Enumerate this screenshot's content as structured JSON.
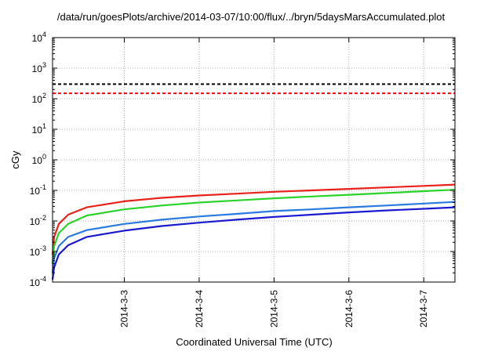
{
  "chart_data": {
    "type": "line",
    "title": "/data/run/goesPlots/archive/2014-03-07/10:00/flux/../bryn/5daysMarsAccumulated.plot",
    "xlabel": "Coordinated Universal Time (UTC)",
    "ylabel": "cGy",
    "y_scale": "log",
    "ylim": [
      0.0001,
      10000
    ],
    "xlim": [
      "2014-03-02 01:00",
      "2014-03-07 10:00"
    ],
    "grid": true,
    "legend": "none",
    "x_ticks": [
      "2014-3-3",
      "2014-3-4",
      "2014-3-5",
      "2014-3-6",
      "2014-3-7"
    ],
    "y_ticks": [
      {
        "base": "10",
        "exp": "-4"
      },
      {
        "base": "10",
        "exp": "-3"
      },
      {
        "base": "10",
        "exp": "-2"
      },
      {
        "base": "10",
        "exp": "-1"
      },
      {
        "base": "10",
        "exp": "0"
      },
      {
        "base": "10",
        "exp": "1"
      },
      {
        "base": "10",
        "exp": "2"
      },
      {
        "base": "10",
        "exp": "3"
      },
      {
        "base": "10",
        "exp": "4"
      }
    ],
    "hlines": [
      {
        "value": 300,
        "color": "#000000",
        "style": "dashed"
      },
      {
        "value": 150,
        "color": "#ff0000",
        "style": "dashed"
      }
    ],
    "series": [
      {
        "color": "#e8211a",
        "points": [
          [
            "2014-03-02 01:00",
            0.0008
          ],
          [
            "2014-03-02 01:30",
            0.003
          ],
          [
            "2014-03-02 03:00",
            0.008
          ],
          [
            "2014-03-02 06:00",
            0.016
          ],
          [
            "2014-03-02 12:00",
            0.028
          ],
          [
            "2014-03-03 00:00",
            0.044
          ],
          [
            "2014-03-03 12:00",
            0.057
          ],
          [
            "2014-03-04 00:00",
            0.068
          ],
          [
            "2014-03-04 12:00",
            0.078
          ],
          [
            "2014-03-05 00:00",
            0.09
          ],
          [
            "2014-03-05 12:00",
            0.1
          ],
          [
            "2014-03-06 00:00",
            0.112
          ],
          [
            "2014-03-06 12:00",
            0.125
          ],
          [
            "2014-03-07 00:00",
            0.14
          ],
          [
            "2014-03-07 10:00",
            0.155
          ]
        ]
      },
      {
        "color": "#2ad32a",
        "points": [
          [
            "2014-03-02 01:00",
            0.0004
          ],
          [
            "2014-03-02 01:30",
            0.0015
          ],
          [
            "2014-03-02 03:00",
            0.004
          ],
          [
            "2014-03-02 06:00",
            0.008
          ],
          [
            "2014-03-02 12:00",
            0.015
          ],
          [
            "2014-03-03 00:00",
            0.024
          ],
          [
            "2014-03-03 12:00",
            0.032
          ],
          [
            "2014-03-04 00:00",
            0.04
          ],
          [
            "2014-03-04 12:00",
            0.047
          ],
          [
            "2014-03-05 00:00",
            0.055
          ],
          [
            "2014-03-05 12:00",
            0.063
          ],
          [
            "2014-03-06 00:00",
            0.072
          ],
          [
            "2014-03-06 12:00",
            0.082
          ],
          [
            "2014-03-07 00:00",
            0.094
          ],
          [
            "2014-03-07 10:00",
            0.105
          ]
        ]
      },
      {
        "color": "#2a7ae0",
        "points": [
          [
            "2014-03-02 01:00",
            0.0002
          ],
          [
            "2014-03-02 01:30",
            0.0006
          ],
          [
            "2014-03-02 03:00",
            0.0015
          ],
          [
            "2014-03-02 06:00",
            0.003
          ],
          [
            "2014-03-02 12:00",
            0.005
          ],
          [
            "2014-03-03 00:00",
            0.008
          ],
          [
            "2014-03-03 12:00",
            0.011
          ],
          [
            "2014-03-04 00:00",
            0.014
          ],
          [
            "2014-03-04 12:00",
            0.017
          ],
          [
            "2014-03-05 00:00",
            0.021
          ],
          [
            "2014-03-05 12:00",
            0.024
          ],
          [
            "2014-03-06 00:00",
            0.028
          ],
          [
            "2014-03-06 12:00",
            0.032
          ],
          [
            "2014-03-07 00:00",
            0.037
          ],
          [
            "2014-03-07 10:00",
            0.042
          ]
        ]
      },
      {
        "color": "#1a1ad0",
        "points": [
          [
            "2014-03-02 01:00",
            0.00012
          ],
          [
            "2014-03-02 01:30",
            0.0003
          ],
          [
            "2014-03-02 03:00",
            0.0008
          ],
          [
            "2014-03-02 06:00",
            0.0016
          ],
          [
            "2014-03-02 12:00",
            0.003
          ],
          [
            "2014-03-03 00:00",
            0.0048
          ],
          [
            "2014-03-03 12:00",
            0.0068
          ],
          [
            "2014-03-04 00:00",
            0.0088
          ],
          [
            "2014-03-04 12:00",
            0.011
          ],
          [
            "2014-03-05 00:00",
            0.0135
          ],
          [
            "2014-03-05 12:00",
            0.016
          ],
          [
            "2014-03-06 00:00",
            0.019
          ],
          [
            "2014-03-06 12:00",
            0.022
          ],
          [
            "2014-03-07 00:00",
            0.025
          ],
          [
            "2014-03-07 10:00",
            0.028
          ]
        ]
      }
    ]
  }
}
